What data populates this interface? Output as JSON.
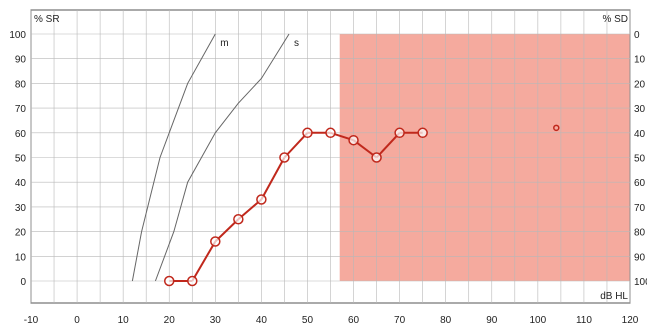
{
  "chart_data": {
    "type": "line",
    "left_axis_label": "% SR",
    "right_axis_label": "% SD",
    "x_unit_label": "dB HL",
    "xlim": [
      -10,
      120
    ],
    "x_ticks": [
      "-10",
      "0",
      "10",
      "20",
      "30",
      "40",
      "50",
      "60",
      "70",
      "80",
      "90",
      "100",
      "110",
      "120"
    ],
    "ylim": [
      0,
      100
    ],
    "y_ticks_left": [
      "100",
      "90",
      "80",
      "70",
      "60",
      "50",
      "40",
      "30",
      "20",
      "10",
      "0"
    ],
    "y_ticks_right": [
      "0",
      "10",
      "20",
      "30",
      "40",
      "50",
      "60",
      "70",
      "80",
      "90",
      "100"
    ],
    "grid": true,
    "reference_curves": [
      {
        "label": "m",
        "points": [
          [
            12,
            0
          ],
          [
            14,
            20
          ],
          [
            16,
            35
          ],
          [
            18,
            50
          ],
          [
            21,
            65
          ],
          [
            24,
            80
          ],
          [
            30,
            100
          ]
        ]
      },
      {
        "label": "s",
        "points": [
          [
            17,
            0
          ],
          [
            21,
            20
          ],
          [
            24,
            40
          ],
          [
            30,
            60
          ],
          [
            35,
            72
          ],
          [
            40,
            82
          ],
          [
            46,
            100
          ]
        ]
      }
    ],
    "shaded_region": {
      "x": [
        57,
        120
      ],
      "y": [
        0,
        100
      ],
      "color": "#f4a194"
    },
    "series": [
      {
        "color": "#c0281c",
        "points": [
          [
            20,
            0
          ],
          [
            25,
            0
          ],
          [
            30,
            16
          ],
          [
            35,
            25
          ],
          [
            40,
            33
          ],
          [
            45,
            50
          ],
          [
            50,
            60
          ],
          [
            55,
            60
          ],
          [
            60,
            57
          ],
          [
            65,
            50
          ],
          [
            70,
            60
          ],
          [
            75,
            60
          ]
        ]
      }
    ],
    "extra_point": {
      "x": 104,
      "y": 62,
      "color": "#c0281c"
    }
  }
}
